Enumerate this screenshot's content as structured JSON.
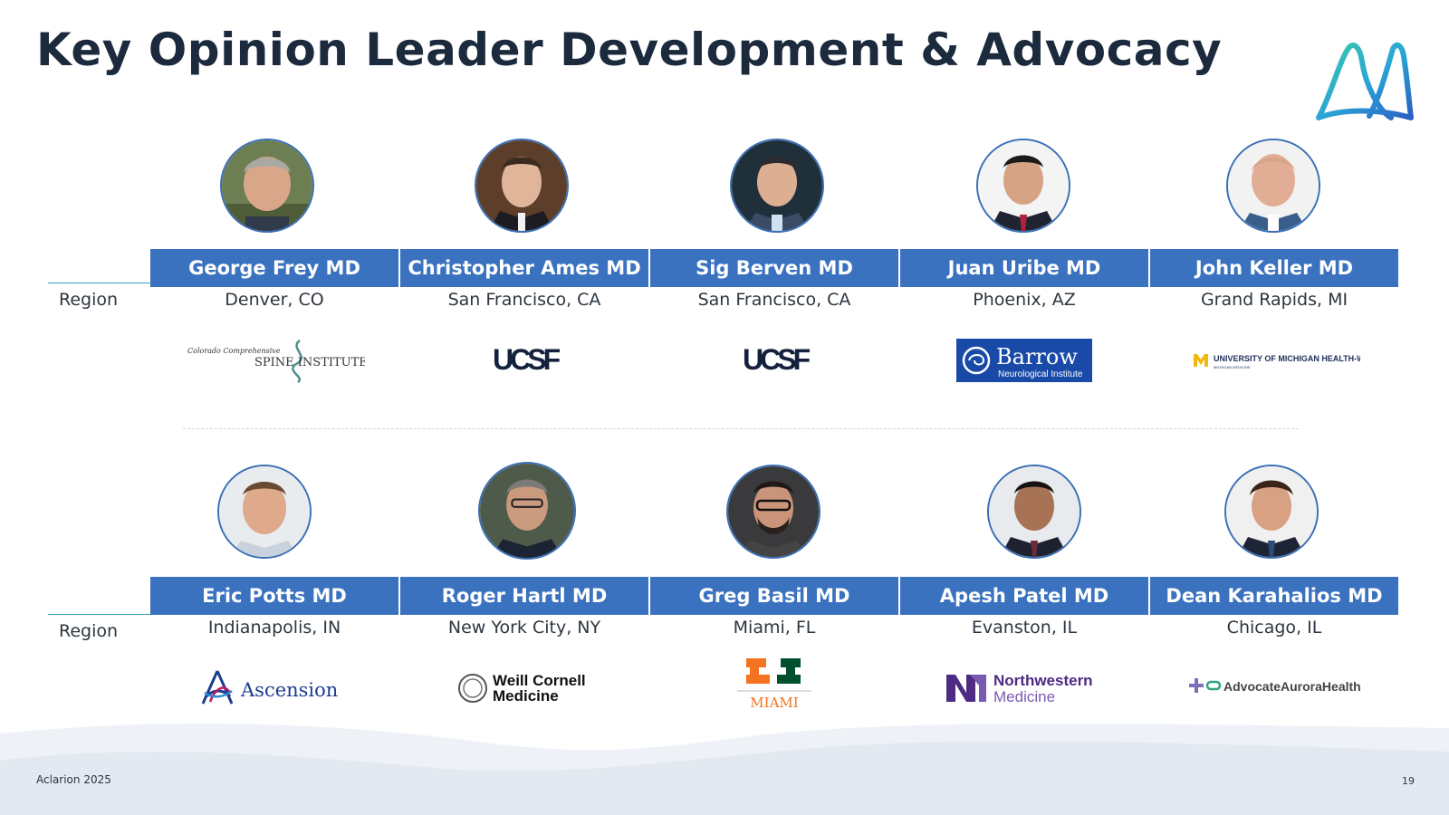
{
  "page": {
    "title": "Key Opinion Leader Development & Advocacy",
    "footer_left": "Aclarion 2025",
    "page_number": "19"
  },
  "region_label": "Region",
  "colors": {
    "name_bar": "#3a72c0",
    "title": "#1b2a3c",
    "region_line": "#3b9fc1",
    "photo_border": "#3a6fb5"
  },
  "row1": [
    {
      "name": "George Frey MD",
      "city": "Denver, CO",
      "institution_logo": "Colorado Comprehensive Spine Institute",
      "logo_text_top": "Colorado Comprehensive",
      "logo_text_main": "SPINE INSTITUTE"
    },
    {
      "name": "Christopher Ames MD",
      "city": "San Francisco, CA",
      "institution_logo": "UCSF",
      "logo_text_main": "UCSF"
    },
    {
      "name": "Sig Berven MD",
      "city": "San Francisco, CA",
      "institution_logo": "UCSF",
      "logo_text_main": "UCSF"
    },
    {
      "name": "Juan Uribe MD",
      "city": "Phoenix, AZ",
      "institution_logo": "Barrow Neurological Institute",
      "logo_text_main": "Barrow",
      "logo_text_sub": "Neurological Institute"
    },
    {
      "name": "John Keller MD",
      "city": "Grand Rapids, MI",
      "institution_logo": "University of Michigan Health-West",
      "logo_text_main": "UNIVERSITY OF MICHIGAN HEALTH-WEST",
      "logo_text_sub": "MICHIGAN MEDICINE"
    }
  ],
  "row2": [
    {
      "name": "Eric Potts MD",
      "city": "Indianapolis, IN",
      "institution_logo": "Ascension",
      "logo_text_main": "Ascension"
    },
    {
      "name": "Roger Hartl MD",
      "city": "New York City, NY",
      "institution_logo": "Weill Cornell Medicine",
      "logo_text_main": "Weill Cornell",
      "logo_text_sub": "Medicine"
    },
    {
      "name": "Greg Basil MD",
      "city": "Miami, FL",
      "institution_logo": "University of Miami",
      "logo_text_main": "MIAMI"
    },
    {
      "name": "Apesh Patel MD",
      "city": "Evanston, IL",
      "institution_logo": "Northwestern Medicine",
      "logo_text_main": "Northwestern",
      "logo_text_sub": "Medicine"
    },
    {
      "name": "Dean Karahalios  MD",
      "city": "Chicago, IL",
      "institution_logo": "Advocate Aurora Health",
      "logo_text_main": "AdvocateAuroraHealth"
    }
  ]
}
